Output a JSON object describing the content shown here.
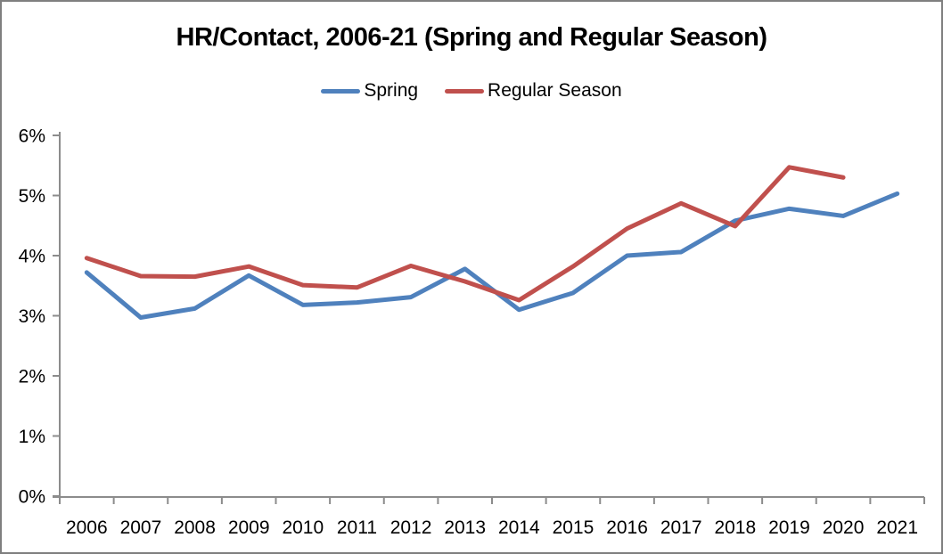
{
  "chart": {
    "title": "HR/Contact, 2006-21 (Spring and Regular Season)"
  },
  "legend": {
    "items": [
      {
        "label": "Spring",
        "color": "#4F81BD"
      },
      {
        "label": "Regular Season",
        "color": "#C0504D"
      }
    ]
  },
  "colors": {
    "spring_line": "#4F81BD",
    "regular_season_line": "#C0504D",
    "axis": "#8c8c8c",
    "tick_text": "#000000",
    "frame_border": "#7f7f7f"
  },
  "chart_data": {
    "type": "line",
    "title": "HR/Contact, 2006-21 (Spring and Regular Season)",
    "x": [
      2006,
      2007,
      2008,
      2009,
      2010,
      2011,
      2012,
      2013,
      2014,
      2015,
      2016,
      2017,
      2018,
      2019,
      2020,
      2021
    ],
    "series": [
      {
        "name": "Spring",
        "color": "#4F81BD",
        "values": [
          3.72,
          2.97,
          3.12,
          3.67,
          3.18,
          3.22,
          3.31,
          3.78,
          3.1,
          3.38,
          4.0,
          4.06,
          4.58,
          4.78,
          4.66,
          5.03
        ]
      },
      {
        "name": "Regular Season",
        "color": "#C0504D",
        "values": [
          3.96,
          3.66,
          3.65,
          3.82,
          3.51,
          3.47,
          3.83,
          3.57,
          3.26,
          3.82,
          4.45,
          4.87,
          4.49,
          5.47,
          5.3,
          null
        ]
      }
    ],
    "ylim": [
      0,
      6
    ],
    "ytick_values": [
      0,
      1,
      2,
      3,
      4,
      5,
      6
    ],
    "yticks": [
      "0%",
      "1%",
      "2%",
      "3%",
      "4%",
      "5%",
      "6%"
    ],
    "xlabel": "",
    "ylabel": "",
    "grid": false,
    "legend_position": "top",
    "notes": "Regular Season series has no 2021 value"
  }
}
